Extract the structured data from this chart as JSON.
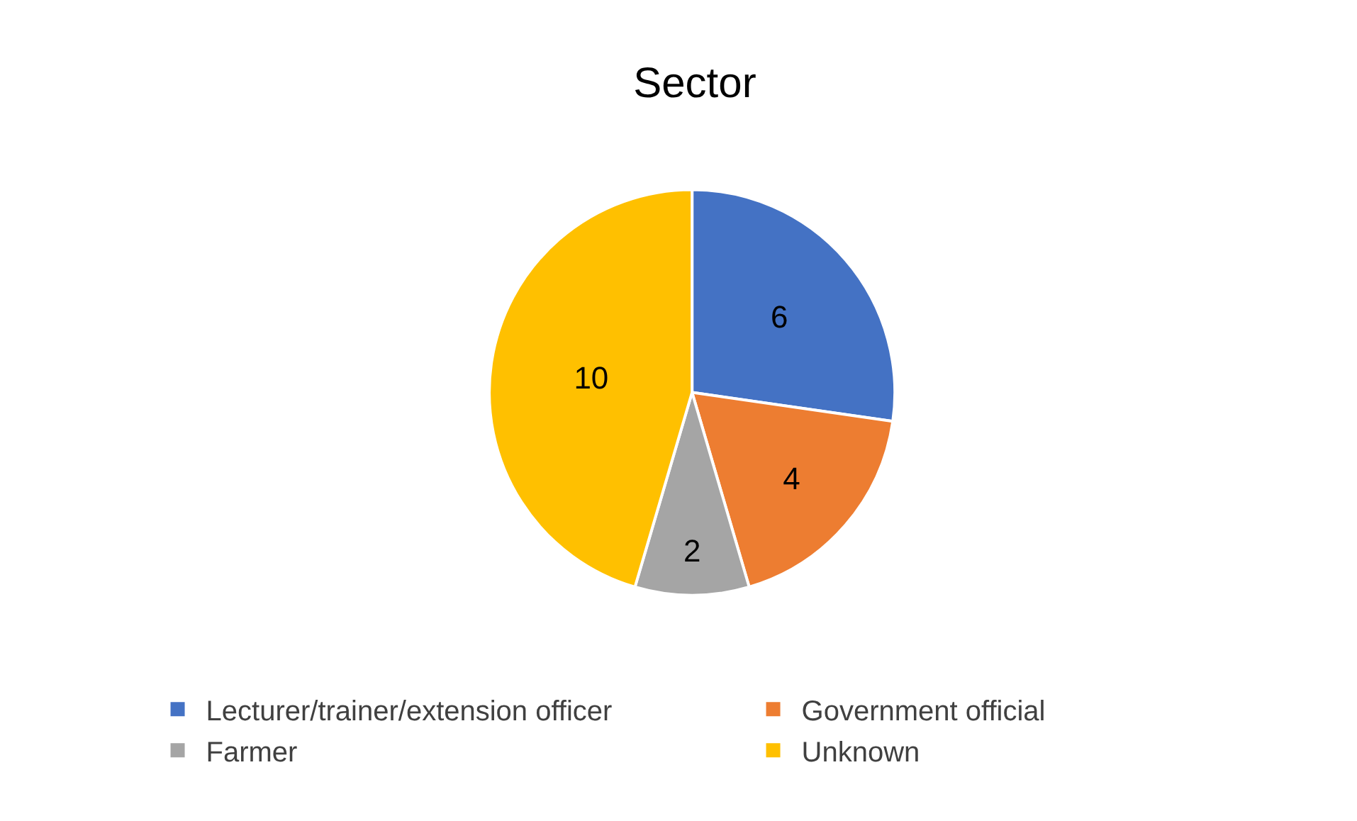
{
  "chart_data": {
    "type": "pie",
    "title": "Sector",
    "categories": [
      "Lecturer/trainer/extension officer",
      "Government official",
      "Farmer",
      "Unknown"
    ],
    "values": [
      6,
      4,
      2,
      10
    ],
    "colors": [
      "#4472c4",
      "#ed7d31",
      "#a5a5a5",
      "#ffc000"
    ],
    "data_labels": true,
    "legend": "bottom"
  }
}
